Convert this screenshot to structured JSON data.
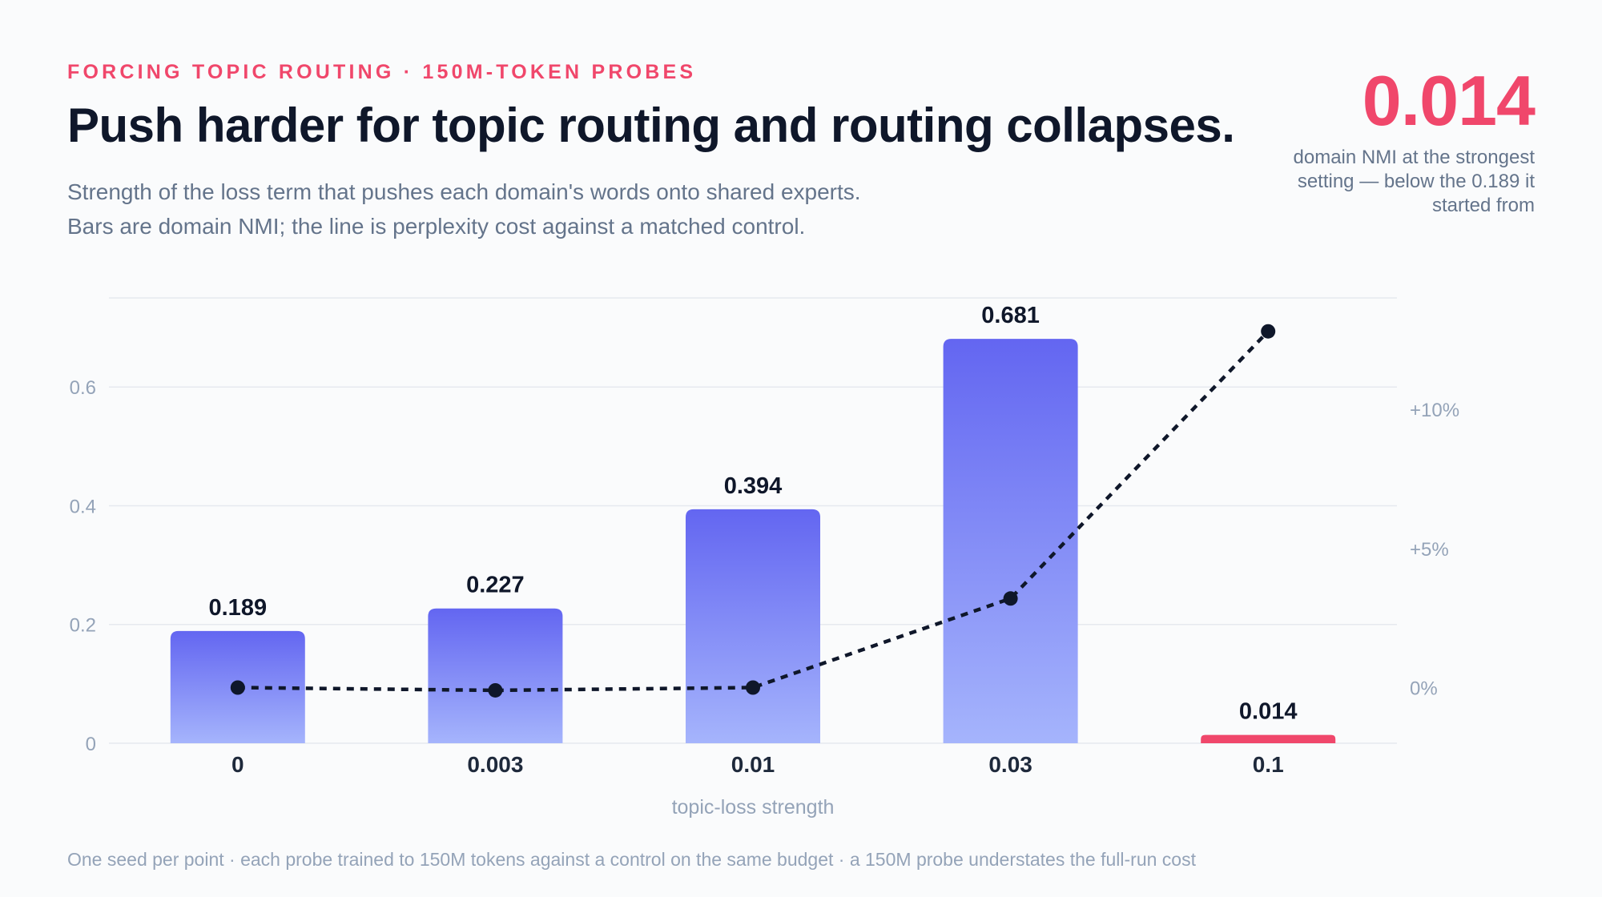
{
  "header": {
    "eyebrow": "FORCING TOPIC ROUTING · 150M-TOKEN PROBES",
    "title": "Push harder for topic routing and routing collapses.",
    "subtitle_line1": "Strength of the loss term that pushes each domain's words onto shared experts.",
    "subtitle_line2": "Bars are domain NMI; the line is perplexity cost against a matched control."
  },
  "kpi": {
    "value": "0.014",
    "caption": "domain NMI at the strongest setting — below the 0.189 it started from"
  },
  "footnote": "One seed per point · each probe trained to 150M tokens against a control on the same budget · a 150M probe understates the full-run cost",
  "colors": {
    "accent": "#f0476b",
    "bar_top": "#6366f1",
    "bar_bottom": "#a5b4fc",
    "line": "#0f172a",
    "grid": "#e6e9ef",
    "axis_text": "#94a3b8"
  },
  "chart_data": {
    "type": "bar",
    "categories": [
      "0",
      "0.003",
      "0.01",
      "0.03",
      "0.1"
    ],
    "xlabel": "topic-loss strength",
    "ylabel": "",
    "ylim": [
      0,
      0.75
    ],
    "yticks": [
      {
        "value": 0,
        "label": "0"
      },
      {
        "value": 0.2,
        "label": "0.2"
      },
      {
        "value": 0.4,
        "label": "0.4"
      },
      {
        "value": 0.6,
        "label": "0.6"
      }
    ],
    "grid": true,
    "series": [
      {
        "type": "bar",
        "values": [
          0.189,
          0.227,
          0.394,
          0.681,
          0.014
        ],
        "labels": [
          "0.189",
          "0.227",
          "0.394",
          "0.681",
          "0.014"
        ],
        "highlight_index": 4
      },
      {
        "type": "line",
        "axis": "right",
        "style": "dashed",
        "values": [
          0.0,
          -0.1,
          0.0,
          3.2,
          12.8
        ]
      }
    ],
    "y2lim": [
      -2,
      14
    ],
    "y2ticks": [
      {
        "value": 0,
        "label": "0%"
      },
      {
        "value": 5,
        "label": "+5%"
      },
      {
        "value": 10,
        "label": "+10%"
      }
    ]
  }
}
